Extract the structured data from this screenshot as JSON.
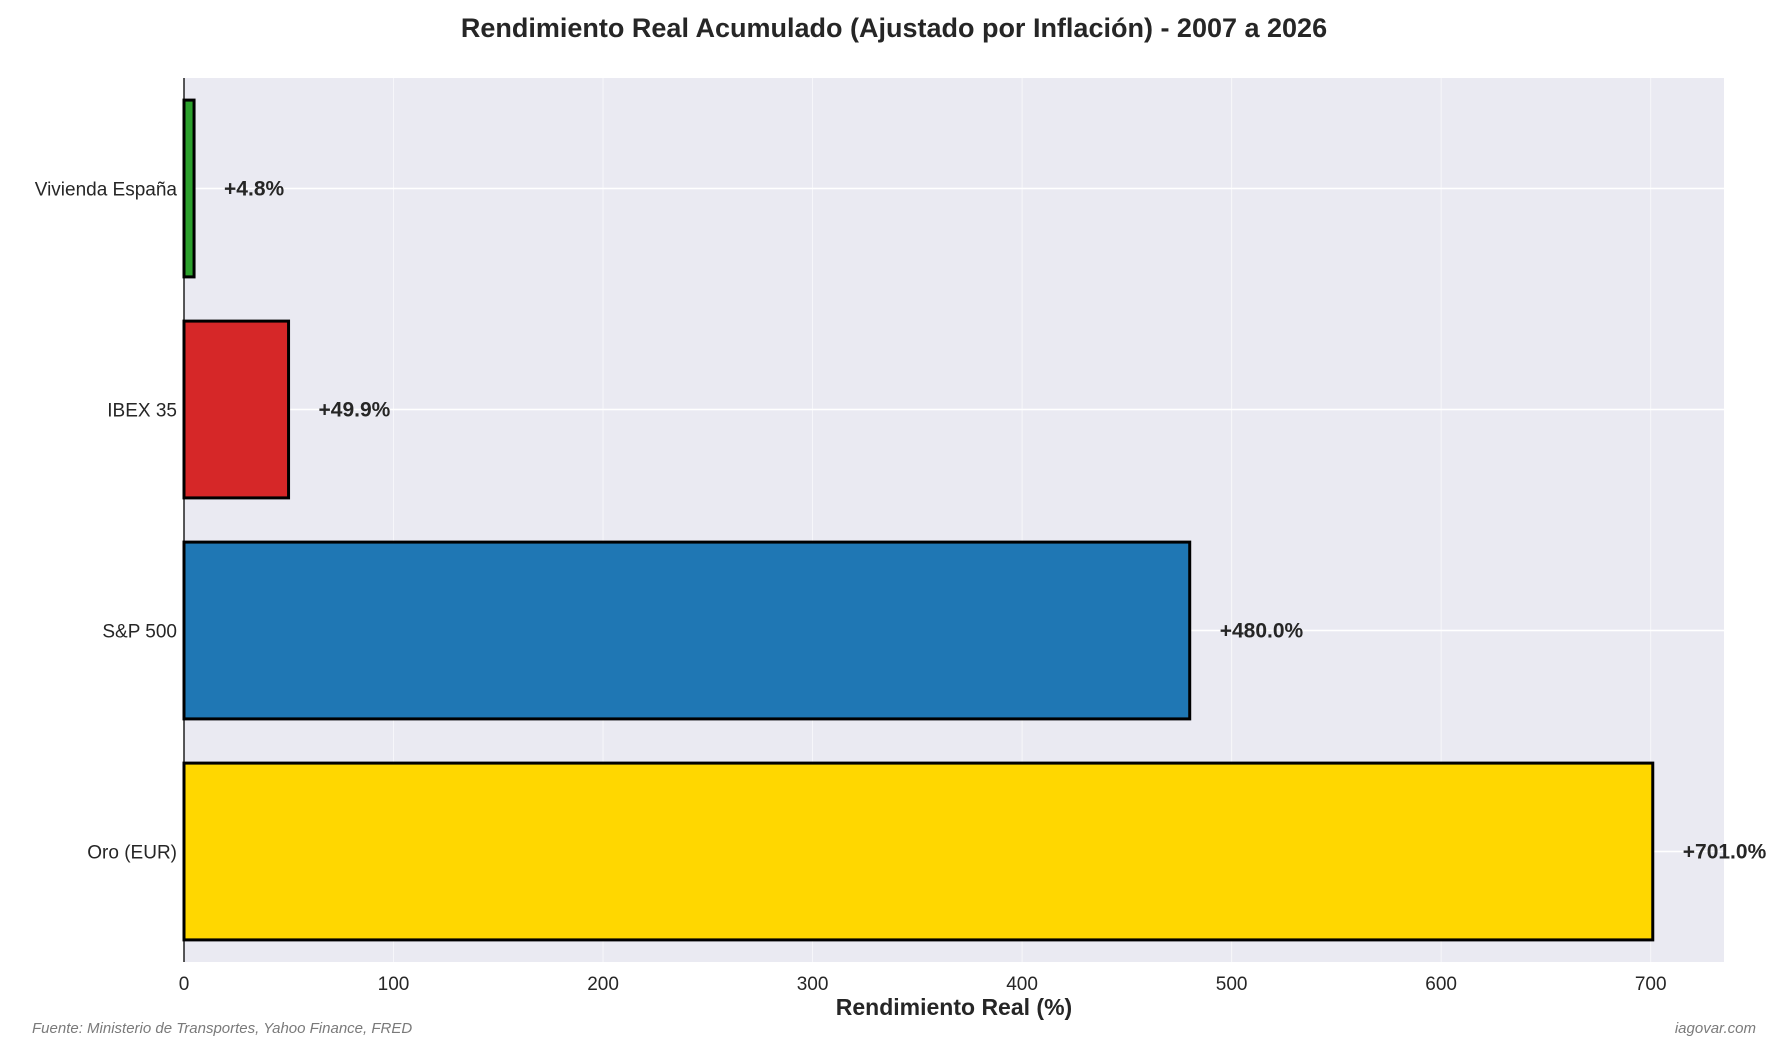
{
  "chart_data": {
    "type": "bar",
    "orientation": "horizontal",
    "title": "Rendimiento Real Acumulado (Ajustado por Inflación) - 2007 a 2026",
    "xlabel": "Rendimiento Real (%)",
    "ylabel": "",
    "categories": [
      "Oro (EUR)",
      "S&P 500",
      "IBEX 35",
      "Vivienda España"
    ],
    "values": [
      701.0,
      480.0,
      49.9,
      4.8
    ],
    "value_labels": [
      "+701.0%",
      "+480.0%",
      "+49.9%",
      "+4.8%"
    ],
    "bar_colors": [
      "#FFD700",
      "#1F77B4",
      "#D62728",
      "#2CA02C"
    ],
    "xlim": [
      0,
      735
    ],
    "xticks": [
      0,
      100,
      200,
      300,
      400,
      500,
      600,
      700
    ],
    "grid": true,
    "plot_background": "#EAEAF2",
    "grid_color": "#FFFFFF",
    "bar_edge_color": "#000000"
  },
  "footer": {
    "source": "Fuente: Ministerio de Transportes, Yahoo Finance, FRED",
    "credit": "iagovar.com"
  }
}
